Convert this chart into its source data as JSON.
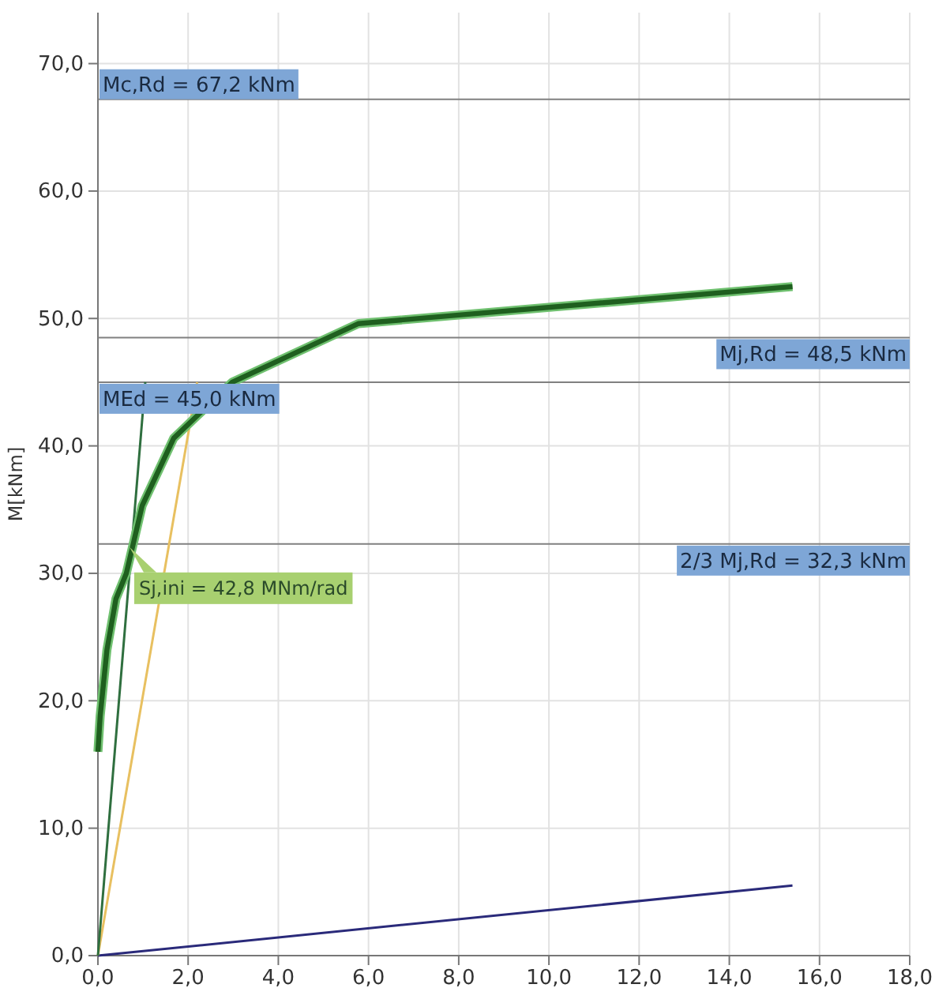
{
  "chart_data": {
    "type": "line",
    "ylabel": "M[kNm]",
    "xlim": [
      0,
      18
    ],
    "ylim": [
      0,
      74
    ],
    "xticks": [
      {
        "value": 0,
        "label": "0,0"
      },
      {
        "value": 2,
        "label": "2,0"
      },
      {
        "value": 4,
        "label": "4,0"
      },
      {
        "value": 6,
        "label": "6,0"
      },
      {
        "value": 8,
        "label": "8,0"
      },
      {
        "value": 10,
        "label": "10,0"
      },
      {
        "value": 12,
        "label": "12,0"
      },
      {
        "value": 14,
        "label": "14,0"
      },
      {
        "value": 16,
        "label": "16,0"
      },
      {
        "value": 18,
        "label": "18,0"
      }
    ],
    "yticks": [
      {
        "value": 0,
        "label": "0,0"
      },
      {
        "value": 10,
        "label": "10,0"
      },
      {
        "value": 20,
        "label": "20,0"
      },
      {
        "value": 30,
        "label": "30,0"
      },
      {
        "value": 40,
        "label": "40,0"
      },
      {
        "value": 50,
        "label": "50,0"
      },
      {
        "value": 60,
        "label": "60,0"
      },
      {
        "value": 70,
        "label": "70,0"
      }
    ],
    "grid": true,
    "marker": "none",
    "line_style": "solid",
    "series": [
      {
        "color": "#1f5f1f",
        "x": [
          0,
          0.05,
          0.2,
          0.4,
          0.63,
          0.98,
          1.68,
          2.98,
          5.78,
          15.4
        ],
        "values": [
          16,
          18.8,
          24,
          28,
          30,
          35.3,
          40.6,
          45,
          49.6,
          52.5
        ]
      },
      {
        "color": "#2f6f3f",
        "x": [
          0,
          1.05
        ],
        "values": [
          0,
          45
        ]
      },
      {
        "color": "#e8c060",
        "x": [
          0,
          2.2
        ],
        "values": [
          0,
          45
        ]
      },
      {
        "color": "#2a2a7a",
        "x": [
          0,
          15.4
        ],
        "values": [
          0,
          5.5
        ]
      }
    ],
    "ref_lines": [
      {
        "axis": "y",
        "value": 67.2,
        "label": "Mc,Rd = 67,2 kNm",
        "color": "#808080"
      },
      {
        "axis": "y",
        "value": 48.5,
        "label": "Mj,Rd = 48,5 kNm",
        "color": "#808080"
      },
      {
        "axis": "y",
        "value": 45.0,
        "label": "MEd = 45,0 kNm",
        "color": "#808080"
      },
      {
        "axis": "y",
        "value": 32.3,
        "label": "2/3 Mj,Rd = 32,3 kNm",
        "color": "#808080"
      }
    ],
    "annotations": [
      {
        "text": "Sj,ini = 42,8 MNm/rad",
        "x": 0.7,
        "y": 32.3
      }
    ]
  }
}
